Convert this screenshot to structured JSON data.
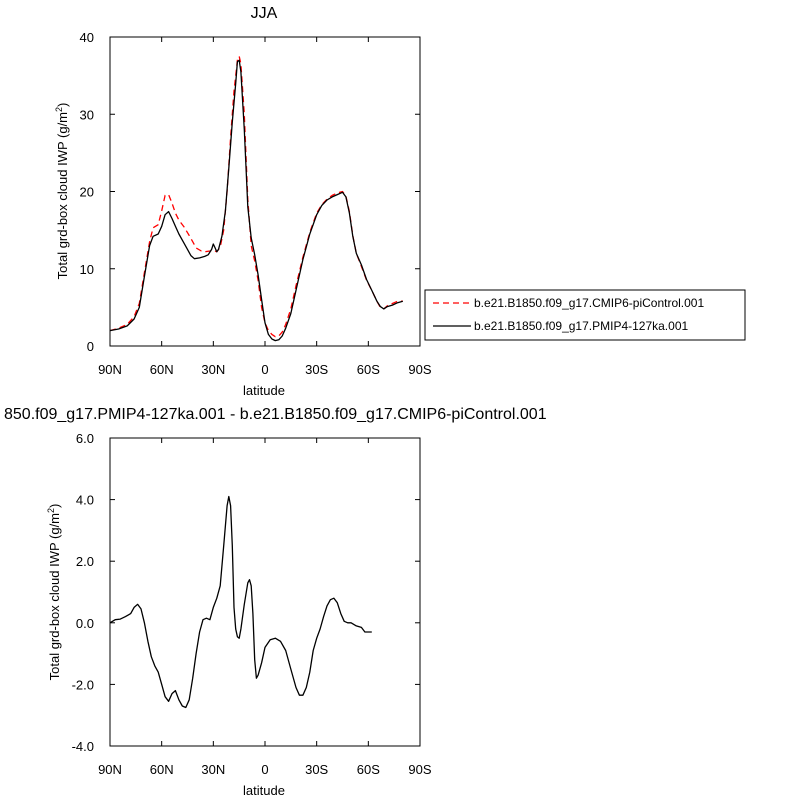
{
  "chart_data": [
    {
      "type": "line",
      "title": "JJA",
      "xlabel": "latitude",
      "ylabel": "Total grd-box cloud IWP (g/m²)",
      "ylabel_main": "Total grd-box cloud IWP (g/m",
      "ylabel_sup": "2",
      "ylabel_tail": ")",
      "xlim": [
        90,
        -90
      ],
      "ylim": [
        0,
        40
      ],
      "x_ticks": [
        90,
        60,
        30,
        0,
        -30,
        -60,
        -90
      ],
      "x_tick_labels": [
        "90N",
        "60N",
        "30N",
        "0",
        "30S",
        "60S",
        "90S"
      ],
      "y_ticks": [
        0,
        10,
        20,
        30,
        40
      ],
      "y_tick_labels": [
        "0",
        "10",
        "20",
        "30",
        "40"
      ],
      "grid": false,
      "legend_position": "right",
      "series": [
        {
          "name": "b.e21.B1850.f09_g17.CMIP6-piControl.001",
          "color": "#ff0000",
          "dash": "dashed",
          "points": [
            [
              90,
              2
            ],
            [
              85,
              2.3
            ],
            [
              80,
              2.8
            ],
            [
              76,
              3.8
            ],
            [
              73,
              5.5
            ],
            [
              70,
              9.5
            ],
            [
              67,
              13.5
            ],
            [
              65,
              15.3
            ],
            [
              62,
              15.7
            ],
            [
              60,
              17.5
            ],
            [
              58,
              19.5
            ],
            [
              56,
              19.6
            ],
            [
              54,
              18.5
            ],
            [
              52,
              17.2
            ],
            [
              50,
              16.3
            ],
            [
              47,
              15.4
            ],
            [
              44,
              14.3
            ],
            [
              42,
              13.5
            ],
            [
              40,
              12.7
            ],
            [
              37,
              12.3
            ],
            [
              35,
              12.2
            ],
            [
              32,
              12.3
            ],
            [
              30,
              12.4
            ],
            [
              28,
              12.2
            ],
            [
              26,
              12.8
            ],
            [
              24,
              15
            ],
            [
              22,
              20
            ],
            [
              20,
              27
            ],
            [
              18,
              33
            ],
            [
              16,
              37
            ],
            [
              15,
              37.5
            ],
            [
              14,
              36.5
            ],
            [
              12,
              30
            ],
            [
              10,
              19
            ],
            [
              8,
              13
            ],
            [
              6,
              11
            ],
            [
              4,
              8.5
            ],
            [
              2,
              5
            ],
            [
              0,
              3
            ],
            [
              -2,
              2
            ],
            [
              -4,
              1.5
            ],
            [
              -6,
              1.2
            ],
            [
              -8,
              1.3
            ],
            [
              -10,
              1.8
            ],
            [
              -12,
              2.8
            ],
            [
              -15,
              4.8
            ],
            [
              -18,
              7.8
            ],
            [
              -22,
              11.5
            ],
            [
              -26,
              14.7
            ],
            [
              -30,
              17.2
            ],
            [
              -33,
              18.3
            ],
            [
              -36,
              19
            ],
            [
              -39,
              19.5
            ],
            [
              -42,
              19.8
            ],
            [
              -45,
              20
            ],
            [
              -47,
              19.4
            ],
            [
              -49,
              17.4
            ],
            [
              -51,
              14.3
            ],
            [
              -53,
              12
            ],
            [
              -56,
              10.3
            ],
            [
              -59,
              8.5
            ],
            [
              -62,
              7.2
            ],
            [
              -65,
              5.8
            ],
            [
              -67,
              5
            ],
            [
              -69,
              4.8
            ],
            [
              -71,
              5.2
            ],
            [
              -74,
              5.5
            ],
            [
              -77,
              5.8
            ],
            [
              -80,
              5.8
            ]
          ]
        },
        {
          "name": "b.e21.B1850.f09_g17.PMIP4-127ka.001",
          "color": "#000000",
          "dash": "solid",
          "points": [
            [
              90,
              2
            ],
            [
              85,
              2.2
            ],
            [
              80,
              2.6
            ],
            [
              76,
              3.5
            ],
            [
              73,
              5
            ],
            [
              70,
              9
            ],
            [
              67,
              13
            ],
            [
              65,
              14.2
            ],
            [
              62,
              14.5
            ],
            [
              60,
              15.5
            ],
            [
              58,
              17
            ],
            [
              56,
              17.4
            ],
            [
              54,
              16.5
            ],
            [
              52,
              15.5
            ],
            [
              50,
              14.5
            ],
            [
              47,
              13.3
            ],
            [
              45,
              12.5
            ],
            [
              43,
              11.7
            ],
            [
              41,
              11.3
            ],
            [
              38,
              11.4
            ],
            [
              35,
              11.6
            ],
            [
              33,
              11.8
            ],
            [
              31,
              12.5
            ],
            [
              30,
              13.2
            ],
            [
              29,
              12.7
            ],
            [
              28,
              12.2
            ],
            [
              27,
              12.5
            ],
            [
              25,
              14.2
            ],
            [
              23,
              17.5
            ],
            [
              21,
              23
            ],
            [
              19,
              29
            ],
            [
              17,
              34
            ],
            [
              16,
              36.8
            ],
            [
              15,
              37
            ],
            [
              14,
              35.5
            ],
            [
              12,
              28
            ],
            [
              10,
              18
            ],
            [
              8,
              14
            ],
            [
              6,
              11.8
            ],
            [
              4,
              9.2
            ],
            [
              2,
              6
            ],
            [
              0,
              3
            ],
            [
              -2,
              1.5
            ],
            [
              -4,
              0.9
            ],
            [
              -6,
              0.7
            ],
            [
              -8,
              0.8
            ],
            [
              -10,
              1.3
            ],
            [
              -12,
              2.3
            ],
            [
              -15,
              4.2
            ],
            [
              -18,
              7.2
            ],
            [
              -22,
              11.2
            ],
            [
              -26,
              14.5
            ],
            [
              -30,
              17
            ],
            [
              -33,
              18.2
            ],
            [
              -36,
              18.9
            ],
            [
              -39,
              19.3
            ],
            [
              -42,
              19.6
            ],
            [
              -45,
              19.9
            ],
            [
              -47,
              19.3
            ],
            [
              -49,
              17.2
            ],
            [
              -51,
              14.2
            ],
            [
              -53,
              12
            ],
            [
              -56,
              10.5
            ],
            [
              -59,
              8.6
            ],
            [
              -62,
              7.2
            ],
            [
              -65,
              5.8
            ],
            [
              -67,
              5.1
            ],
            [
              -69,
              4.8
            ],
            [
              -71,
              5.1
            ],
            [
              -74,
              5.3
            ],
            [
              -77,
              5.6
            ],
            [
              -80,
              5.8
            ]
          ]
        }
      ]
    },
    {
      "type": "line",
      "title": "850.f09_g17.PMIP4-127ka.001 - b.e21.B1850.f09_g17.CMIP6-piControl.001",
      "xlabel": "latitude",
      "ylabel": "Total grd-box cloud IWP (g/m²)",
      "ylabel_main": "Total grd-box cloud IWP (g/m",
      "ylabel_sup": "2",
      "ylabel_tail": ")",
      "xlim": [
        90,
        -90
      ],
      "ylim": [
        -4,
        6
      ],
      "x_ticks": [
        90,
        60,
        30,
        0,
        -30,
        -60,
        -90
      ],
      "x_tick_labels": [
        "90N",
        "60N",
        "30N",
        "0",
        "30S",
        "60S",
        "90S"
      ],
      "y_ticks": [
        -4,
        -2,
        0,
        2,
        4,
        6
      ],
      "y_tick_labels": [
        "-4.0",
        "-2.0",
        "0.0",
        "2.0",
        "4.0",
        "6.0"
      ],
      "grid": false,
      "series": [
        {
          "color": "#000000",
          "dash": "solid",
          "points": [
            [
              90,
              0
            ],
            [
              87,
              0.1
            ],
            [
              84,
              0.12
            ],
            [
              81,
              0.2
            ],
            [
              78,
              0.3
            ],
            [
              76,
              0.5
            ],
            [
              74,
              0.6
            ],
            [
              72,
              0.45
            ],
            [
              70,
              0
            ],
            [
              68,
              -0.6
            ],
            [
              66,
              -1.1
            ],
            [
              64,
              -1.4
            ],
            [
              62,
              -1.6
            ],
            [
              60,
              -2
            ],
            [
              58,
              -2.4
            ],
            [
              56,
              -2.55
            ],
            [
              54,
              -2.3
            ],
            [
              52,
              -2.2
            ],
            [
              50,
              -2.5
            ],
            [
              48,
              -2.7
            ],
            [
              46,
              -2.75
            ],
            [
              44,
              -2.5
            ],
            [
              42,
              -1.8
            ],
            [
              40,
              -1
            ],
            [
              38,
              -0.3
            ],
            [
              36,
              0.1
            ],
            [
              34,
              0.15
            ],
            [
              32,
              0.1
            ],
            [
              30,
              0.5
            ],
            [
              28,
              0.8
            ],
            [
              26,
              1.2
            ],
            [
              24,
              2.5
            ],
            [
              22,
              3.8
            ],
            [
              21,
              4.1
            ],
            [
              20,
              3.8
            ],
            [
              19,
              2.5
            ],
            [
              18,
              0.5
            ],
            [
              17,
              -0.2
            ],
            [
              16,
              -0.45
            ],
            [
              15,
              -0.5
            ],
            [
              14,
              -0.2
            ],
            [
              12,
              0.6
            ],
            [
              10,
              1.3
            ],
            [
              9,
              1.4
            ],
            [
              8,
              1.2
            ],
            [
              7,
              0.3
            ],
            [
              6,
              -1.2
            ],
            [
              5,
              -1.8
            ],
            [
              4,
              -1.7
            ],
            [
              2,
              -1.3
            ],
            [
              0,
              -0.8
            ],
            [
              -3,
              -0.55
            ],
            [
              -6,
              -0.5
            ],
            [
              -9,
              -0.6
            ],
            [
              -12,
              -0.9
            ],
            [
              -15,
              -1.5
            ],
            [
              -18,
              -2.1
            ],
            [
              -20,
              -2.35
            ],
            [
              -22,
              -2.35
            ],
            [
              -24,
              -2.1
            ],
            [
              -26,
              -1.6
            ],
            [
              -28,
              -0.9
            ],
            [
              -30,
              -0.5
            ],
            [
              -32,
              -0.2
            ],
            [
              -34,
              0.2
            ],
            [
              -36,
              0.55
            ],
            [
              -38,
              0.75
            ],
            [
              -40,
              0.8
            ],
            [
              -42,
              0.65
            ],
            [
              -44,
              0.3
            ],
            [
              -46,
              0.05
            ],
            [
              -48,
              0
            ],
            [
              -50,
              0
            ],
            [
              -53,
              -0.1
            ],
            [
              -56,
              -0.15
            ],
            [
              -58,
              -0.3
            ],
            [
              -62,
              -0.3
            ]
          ]
        }
      ]
    }
  ]
}
